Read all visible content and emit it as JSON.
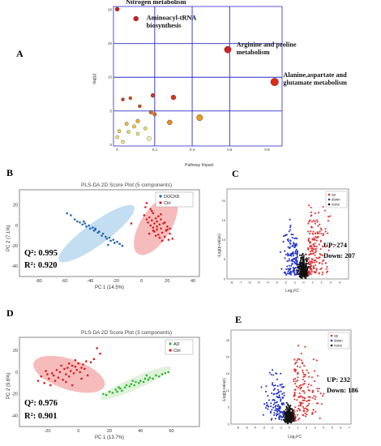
{
  "colors": {
    "blue_grid": "#2b2bcc",
    "up": "#e23030",
    "down": "#2233cc",
    "none": "#111111",
    "ellipse_blue": "#b9d8ee",
    "ellipse_red": "#f4b0b0",
    "ellipse_green": "#d9f0d5",
    "dock8": "#1f66b0",
    "ctrl": "#e01a1a",
    "ad": "#2db82d"
  },
  "panels": {
    "A": {
      "label": "A"
    },
    "B": {
      "label": "B"
    },
    "C": {
      "label": "C"
    },
    "D": {
      "label": "D"
    },
    "E": {
      "label": "E"
    }
  },
  "chart_data": [
    {
      "id": "A",
      "type": "scatter",
      "title": "",
      "xlabel": "Pathway Impact",
      "ylabel": "-log(p)",
      "xlim": [
        -0.02,
        0.88
      ],
      "ylim": [
        -0.2,
        20.5
      ],
      "xticks": [
        "0",
        "0.2",
        "0.4",
        "0.6",
        "0.8"
      ],
      "yticks": [
        "0",
        "5",
        "10",
        "15",
        "20"
      ],
      "grid": true,
      "points": [
        {
          "x": 0.0,
          "y": 20.1,
          "r": 2.5,
          "color": "#cc2020"
        },
        {
          "x": 0.1,
          "y": 18.7,
          "r": 3,
          "color": "#cc2020"
        },
        {
          "x": 0.59,
          "y": 14.1,
          "r": 4.2,
          "color": "#d41f1f"
        },
        {
          "x": 0.84,
          "y": 9.3,
          "r": 4.8,
          "color": "#e02a1a"
        },
        {
          "x": 0.19,
          "y": 7.3,
          "r": 2.5,
          "color": "#d23a1a"
        },
        {
          "x": 0.3,
          "y": 7.0,
          "r": 3,
          "color": "#d23a1a"
        },
        {
          "x": 0.03,
          "y": 6.7,
          "r": 2,
          "color": "#cc3a1a"
        },
        {
          "x": 0.07,
          "y": 6.9,
          "r": 2,
          "color": "#d4501a"
        },
        {
          "x": 0.12,
          "y": 5.7,
          "r": 2,
          "color": "#d84d1a"
        },
        {
          "x": 0.2,
          "y": 4.5,
          "r": 2.3,
          "color": "#e06a1a"
        },
        {
          "x": 0.18,
          "y": 4.8,
          "r": 2.3,
          "color": "#e06a1a"
        },
        {
          "x": 0.28,
          "y": 3.3,
          "r": 3,
          "color": "#ea8a1a"
        },
        {
          "x": 0.44,
          "y": 4.0,
          "r": 3.8,
          "color": "#ee9a22"
        },
        {
          "x": 0.11,
          "y": 3.5,
          "r": 2.3,
          "color": "#f0b030"
        },
        {
          "x": 0.05,
          "y": 3.1,
          "r": 2.2,
          "color": "#f2c038"
        },
        {
          "x": 0.09,
          "y": 2.7,
          "r": 2.2,
          "color": "#f5d040"
        },
        {
          "x": 0.01,
          "y": 2.0,
          "r": 2,
          "color": "#f6d84a"
        },
        {
          "x": 0.06,
          "y": 1.9,
          "r": 2,
          "color": "#f8e050"
        },
        {
          "x": 0.0,
          "y": 1.1,
          "r": 2,
          "color": "#f9e860"
        },
        {
          "x": 0.03,
          "y": 0.4,
          "r": 2,
          "color": "#fbf080"
        },
        {
          "x": 0.11,
          "y": 1.6,
          "r": 2,
          "color": "#fbf080"
        },
        {
          "x": 0.17,
          "y": 0.9,
          "r": 2.5,
          "color": "#fcf6a0"
        },
        {
          "x": 0.15,
          "y": 2.4,
          "r": 2,
          "color": "#f8e050"
        }
      ],
      "annotations": [
        {
          "text": "Nitrogen metabolism",
          "lines": [
            "Nitrogen metabolism"
          ],
          "x": 0.02,
          "y": 20.6
        },
        {
          "text": "Aminoacyl-tRNA biosynthesis",
          "lines": [
            "Aminoacyl-tRNA",
            "biosynthesis"
          ],
          "x": 0.13,
          "y": 18.3
        },
        {
          "text": "Arginine and proline metabolism",
          "lines": [
            "Arginine and proline",
            "metabolism"
          ],
          "x": 0.61,
          "y": 14.3
        },
        {
          "text": "Alanine,aspartate and glutamate metabolism",
          "lines": [
            "Alanine,aspartate and",
            "glutamate metabolism"
          ],
          "x": 0.86,
          "y": 9.8
        }
      ]
    },
    {
      "id": "B",
      "type": "scatter",
      "title": "PLS-DA 2D Score Plot (5 components)",
      "xlabel": "PC 1 (14.5%)",
      "ylabel": "PC 2 (7.1%)",
      "xlim": [
        -95,
        45
      ],
      "ylim": [
        -50,
        35
      ],
      "xticks": [
        "-80",
        "-60",
        "-40",
        "-20",
        "0",
        "20",
        "40"
      ],
      "yticks": [
        "-40",
        "-20",
        "0",
        "20"
      ],
      "legend": [
        "DOCK8",
        "Ctrl"
      ],
      "legend_position": "top-right",
      "stats": {
        "q2": "Q²: 0.995",
        "r2": "R²: 0.920"
      },
      "series": [
        {
          "name": "DOCK8",
          "ellipse": {
            "cx": -35,
            "cy": -8,
            "rx": 36,
            "ry": 11,
            "rot": -36
          },
          "x": [
            -58,
            -55,
            -52,
            -50,
            -48,
            -46,
            -44,
            -43,
            -41,
            -40,
            -38,
            -37,
            -36,
            -34,
            -33,
            -31,
            -30,
            -28,
            -27,
            -25,
            -24,
            -22,
            -21,
            -19,
            -17,
            -15,
            -26,
            -36,
            -45
          ],
          "y": [
            12,
            10,
            6,
            4,
            3,
            1,
            2,
            -1,
            0,
            -3,
            -2,
            -5,
            -4,
            -7,
            -6,
            -10,
            -8,
            -11,
            -13,
            -12,
            -15,
            -14,
            -17,
            -16,
            -18,
            -20,
            -19,
            -3,
            4
          ]
        },
        {
          "name": "Ctrl",
          "ellipse": {
            "cx": 11,
            "cy": 0,
            "rx": 26,
            "ry": 15,
            "rot": -58
          },
          "x": [
            2,
            4,
            5,
            6,
            7,
            8,
            9,
            9,
            10,
            10,
            11,
            12,
            12,
            13,
            14,
            14,
            15,
            15,
            16,
            17,
            18,
            19,
            20,
            21,
            22,
            22,
            6,
            8,
            11,
            13,
            16,
            18,
            20,
            3,
            24,
            -8,
            4,
            12,
            15,
            9,
            7
          ],
          "y": [
            10,
            6,
            3,
            8,
            0,
            5,
            -2,
            12,
            2,
            -6,
            7,
            -4,
            4,
            -9,
            1,
            -12,
            6,
            -3,
            -7,
            2,
            -11,
            -5,
            -1,
            -14,
            -8,
            -3,
            -8,
            14,
            -10,
            9,
            -15,
            3,
            -4,
            18,
            -13,
            2,
            22,
            -1,
            11,
            -5,
            16
          ]
        }
      ]
    },
    {
      "id": "C",
      "type": "scatter",
      "title": "",
      "xlabel": "Log₂FC",
      "ylabel": "-Log(p-value)",
      "xlim": [
        -8.5,
        5
      ],
      "ylim": [
        0,
        23
      ],
      "xticks": [
        "-8",
        "-7",
        "-6",
        "-5",
        "-4",
        "-3",
        "-2",
        "-1",
        "0",
        "1",
        "2",
        "3",
        "4"
      ],
      "yticks": [
        "0",
        "5",
        "10",
        "15",
        "20"
      ],
      "legend": [
        "up",
        "down",
        "none"
      ],
      "legend_position": "top-right",
      "counts": {
        "up": "UP:  274",
        "down": "Down:  207"
      }
    },
    {
      "id": "D",
      "type": "scatter",
      "title": "PLS-DA 2D Score Plot (3 components)",
      "xlabel": "PC 1 (13.7%)",
      "ylabel": "PC 2 (9.6%)",
      "xlim": [
        -38,
        78
      ],
      "ylim": [
        -50,
        32
      ],
      "xticks": [
        "-20",
        "0",
        "20",
        "40",
        "60"
      ],
      "yticks": [
        "-40",
        "-20",
        "0",
        "20"
      ],
      "legend": [
        "AD",
        "Ctrl"
      ],
      "legend_position": "top-right",
      "stats": {
        "q2": "Q²: 0.976",
        "r2": "R²: 0.901"
      },
      "series": [
        {
          "name": "Ctrl",
          "ellipse": {
            "cx": -6,
            "cy": -2,
            "rx": 24,
            "ry": 14,
            "rot": 18
          },
          "x": [
            -26,
            -24,
            -22,
            -20,
            -19,
            -18,
            -16,
            -15,
            -14,
            -13,
            -12,
            -10,
            -9,
            -8,
            -7,
            -6,
            -5,
            -4,
            -3,
            -2,
            -1,
            0,
            1,
            2,
            3,
            4,
            5,
            6,
            8,
            10,
            -17,
            -11,
            -6,
            -2,
            2,
            12,
            14,
            -21,
            -8,
            -4
          ],
          "y": [
            -8,
            -4,
            -10,
            -2,
            -6,
            -12,
            -3,
            -8,
            2,
            -5,
            0,
            -7,
            3,
            -2,
            4,
            -4,
            1,
            6,
            -1,
            5,
            2,
            8,
            0,
            4,
            7,
            3,
            10,
            -3,
            9,
            12,
            -1,
            6,
            8,
            11,
            -6,
            22,
            17,
            1,
            -9,
            -12
          ]
        },
        {
          "name": "AD",
          "ellipse": {
            "cx": 37,
            "cy": -10,
            "rx": 25,
            "ry": 5.5,
            "rot": -24
          },
          "x": [
            16,
            18,
            20,
            22,
            24,
            25,
            27,
            28,
            30,
            31,
            33,
            34,
            36,
            37,
            39,
            40,
            42,
            43,
            45,
            46,
            48,
            50,
            52,
            54,
            56,
            58,
            26,
            35,
            44
          ],
          "y": [
            -20,
            -21,
            -18,
            -19,
            -16,
            -18,
            -15,
            -17,
            -14,
            -12,
            -13,
            -11,
            -12,
            -9,
            -10,
            -8,
            -9,
            -6,
            -7,
            -5,
            -6,
            -3,
            -4,
            -2,
            -1,
            0,
            -14,
            -8,
            -3
          ]
        }
      ]
    },
    {
      "id": "E",
      "type": "scatter",
      "title": "",
      "xlabel": "Log₂FC",
      "ylabel": "-Log(p-value)",
      "xlim": [
        -6.8,
        7.2
      ],
      "ylim": [
        0,
        28
      ],
      "xticks": [
        "-6",
        "-5",
        "-4",
        "-3",
        "-2",
        "-1",
        "0",
        "1",
        "2",
        "3",
        "4",
        "5",
        "6",
        "7"
      ],
      "yticks": [
        "0",
        "5",
        "10",
        "15",
        "20",
        "25"
      ],
      "legend": [
        "up",
        "down",
        "none"
      ],
      "legend_position": "top-right",
      "counts": {
        "up": "UP:  232",
        "down": "Down:  186"
      }
    }
  ]
}
